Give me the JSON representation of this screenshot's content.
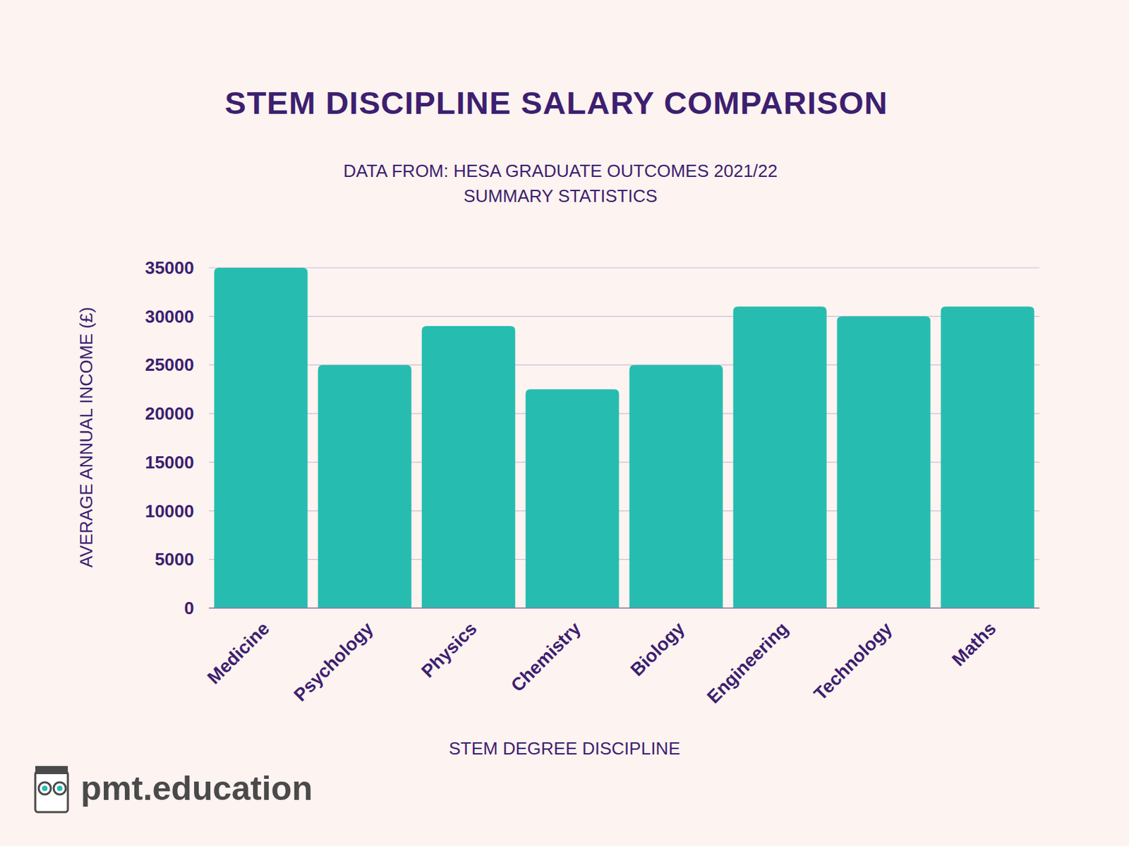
{
  "chart_data": {
    "type": "bar",
    "title": "STEM DISCIPLINE SALARY COMPARISON",
    "subtitle": [
      "DATA FROM: HESA GRADUATE OUTCOMES 2021/22",
      "SUMMARY STATISTICS"
    ],
    "x_label": "STEM DEGREE DISCIPLINE",
    "y_label": "AVERAGE ANNUAL INCOME (£)",
    "annotation": "pmt.education",
    "categories": [
      "Medicine",
      "Psychology",
      "Physics",
      "Chemistry",
      "Biology",
      "Engineering",
      "Technology",
      "Maths"
    ],
    "values": [
      35000,
      25000,
      29000,
      22500,
      25000,
      31000,
      30000,
      31000
    ],
    "color": "#26bdb0",
    "ylim": [
      0,
      35000
    ],
    "yticks": [
      0,
      5000,
      10000,
      15000,
      20000,
      25000,
      30000,
      35000
    ],
    "grid": true
  }
}
